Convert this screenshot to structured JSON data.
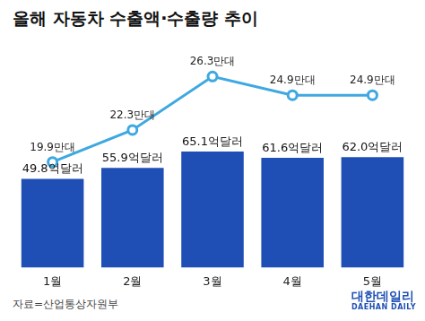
{
  "chart_data": {
    "type": "bar",
    "title": "올해 자동차 수출액·수출량 추이",
    "categories": [
      "1월",
      "2월",
      "3월",
      "4월",
      "5월"
    ],
    "series": [
      {
        "type": "bar",
        "color": "#1f4fb4",
        "values": [
          49.8,
          55.9,
          65.1,
          61.6,
          62.0
        ],
        "value_labels": [
          "49.8억달러",
          "55.9억달러",
          "65.1억달러",
          "61.6억달러",
          "62.0억달러"
        ]
      },
      {
        "type": "line",
        "axis": "y2",
        "color": "#3ea8e0",
        "marker": "circle",
        "values": [
          19.9,
          22.3,
          26.3,
          24.9,
          24.9
        ],
        "value_labels": [
          "19.9만대",
          "22.3만대",
          "26.3만대",
          "24.9만대",
          "24.9만대"
        ]
      }
    ],
    "ylim": [
      0,
      120
    ],
    "y2lim": [
      12,
      28
    ],
    "grid": false,
    "data_labels": true,
    "tick_labels": "x",
    "source": "자료=산업통상자원부",
    "logo": [
      "대한데일리",
      "DAEHAN DAILY"
    ]
  }
}
